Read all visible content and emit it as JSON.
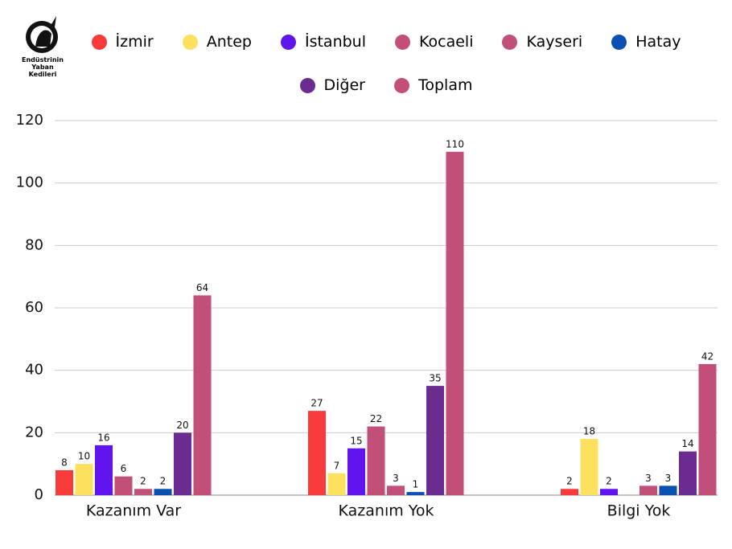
{
  "logo": {
    "lines": [
      "Endüstrinin",
      "Yaban",
      "Kedileri"
    ]
  },
  "chart_data": {
    "type": "bar",
    "categories": [
      "Kazanım Var",
      "Kazanım Yok",
      "Bilgi Yok"
    ],
    "series": [
      {
        "name": "İzmir",
        "color": "#f93a3a",
        "values": [
          8,
          27,
          2
        ]
      },
      {
        "name": "Antep",
        "color": "#fde05e",
        "values": [
          10,
          7,
          18
        ]
      },
      {
        "name": "İstanbul",
        "color": "#6115ee",
        "values": [
          16,
          15,
          2
        ]
      },
      {
        "name": "Kocaeli",
        "color": "#c24f7a",
        "values": [
          6,
          22,
          null
        ]
      },
      {
        "name": "Kayseri",
        "color": "#c24f7a",
        "values": [
          2,
          3,
          3
        ]
      },
      {
        "name": "Hatay",
        "color": "#0b4fb0",
        "values": [
          2,
          1,
          3
        ]
      },
      {
        "name": "Diğer",
        "color": "#6b2b91",
        "values": [
          20,
          35,
          14
        ]
      },
      {
        "name": "Toplam",
        "color": "#c24f7a",
        "values": [
          64,
          110,
          42
        ]
      }
    ],
    "ylim": [
      0,
      120
    ],
    "yticks": [
      0,
      20,
      40,
      60,
      80,
      100,
      120
    ],
    "grid": true
  }
}
